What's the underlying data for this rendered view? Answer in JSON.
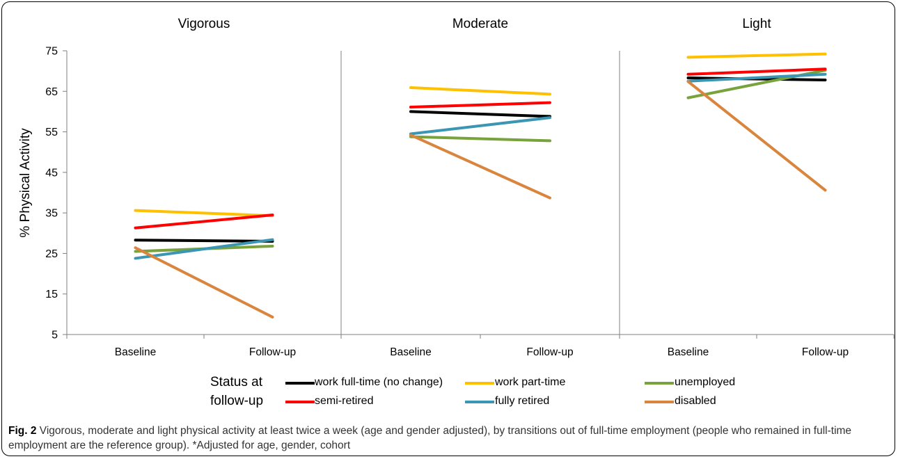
{
  "chart_data": [
    {
      "type": "line",
      "title": "Vigorous",
      "categories": [
        "Baseline",
        "Follow-up"
      ],
      "ylabel": "% Physical Activity",
      "ylim": [
        5,
        75
      ],
      "yticks": [
        5,
        15,
        25,
        35,
        45,
        55,
        65,
        75
      ],
      "series": [
        {
          "name": "work full-time (no change)",
          "values": [
            28.3,
            28.0
          ]
        },
        {
          "name": "work part-time",
          "values": [
            35.6,
            34.3
          ]
        },
        {
          "name": "unemployed",
          "values": [
            25.5,
            26.8
          ]
        },
        {
          "name": "semi-retired",
          "values": [
            31.3,
            34.5
          ]
        },
        {
          "name": "fully retired",
          "values": [
            23.8,
            28.4
          ]
        },
        {
          "name": "disabled",
          "values": [
            26.4,
            9.3
          ]
        }
      ]
    },
    {
      "type": "line",
      "title": "Moderate",
      "categories": [
        "Baseline",
        "Follow-up"
      ],
      "ylim": [
        5,
        75
      ],
      "series": [
        {
          "name": "work full-time (no change)",
          "values": [
            60.0,
            58.8
          ]
        },
        {
          "name": "work part-time",
          "values": [
            65.9,
            64.3
          ]
        },
        {
          "name": "unemployed",
          "values": [
            53.8,
            52.8
          ]
        },
        {
          "name": "semi-retired",
          "values": [
            61.1,
            62.2
          ]
        },
        {
          "name": "fully retired",
          "values": [
            54.5,
            58.5
          ]
        },
        {
          "name": "disabled",
          "values": [
            54.2,
            38.7
          ]
        }
      ]
    },
    {
      "type": "line",
      "title": "Light",
      "categories": [
        "Baseline",
        "Follow-up"
      ],
      "ylim": [
        5,
        75
      ],
      "series": [
        {
          "name": "work full-time (no change)",
          "values": [
            68.3,
            67.8
          ]
        },
        {
          "name": "work part-time",
          "values": [
            73.4,
            74.2
          ]
        },
        {
          "name": "unemployed",
          "values": [
            63.4,
            70.2
          ]
        },
        {
          "name": "semi-retired",
          "values": [
            69.2,
            70.5
          ]
        },
        {
          "name": "fully retired",
          "values": [
            67.5,
            69.2
          ]
        },
        {
          "name": "disabled",
          "values": [
            67.4,
            40.6
          ]
        }
      ]
    }
  ],
  "series_colors": {
    "work full-time (no change)": "#000000",
    "work part-time": "#FFC000",
    "unemployed": "#77A23C",
    "semi-retired": "#FF0000",
    "fully retired": "#3A96B2",
    "disabled": "#D9853E"
  },
  "legend": {
    "title_line1": "Status at",
    "title_line2": "follow-up",
    "items": [
      "work full-time (no change)",
      "work part-time",
      "unemployed",
      "semi-retired",
      "fully retired",
      "disabled"
    ]
  },
  "caption": {
    "label": "Fig. 2",
    "text": " Vigorous, moderate and light physical activity at least twice a week (age and gender adjusted), by transitions out of full-time employment (people who remained in full-time employment are the reference group). *Adjusted for age, gender, cohort"
  }
}
